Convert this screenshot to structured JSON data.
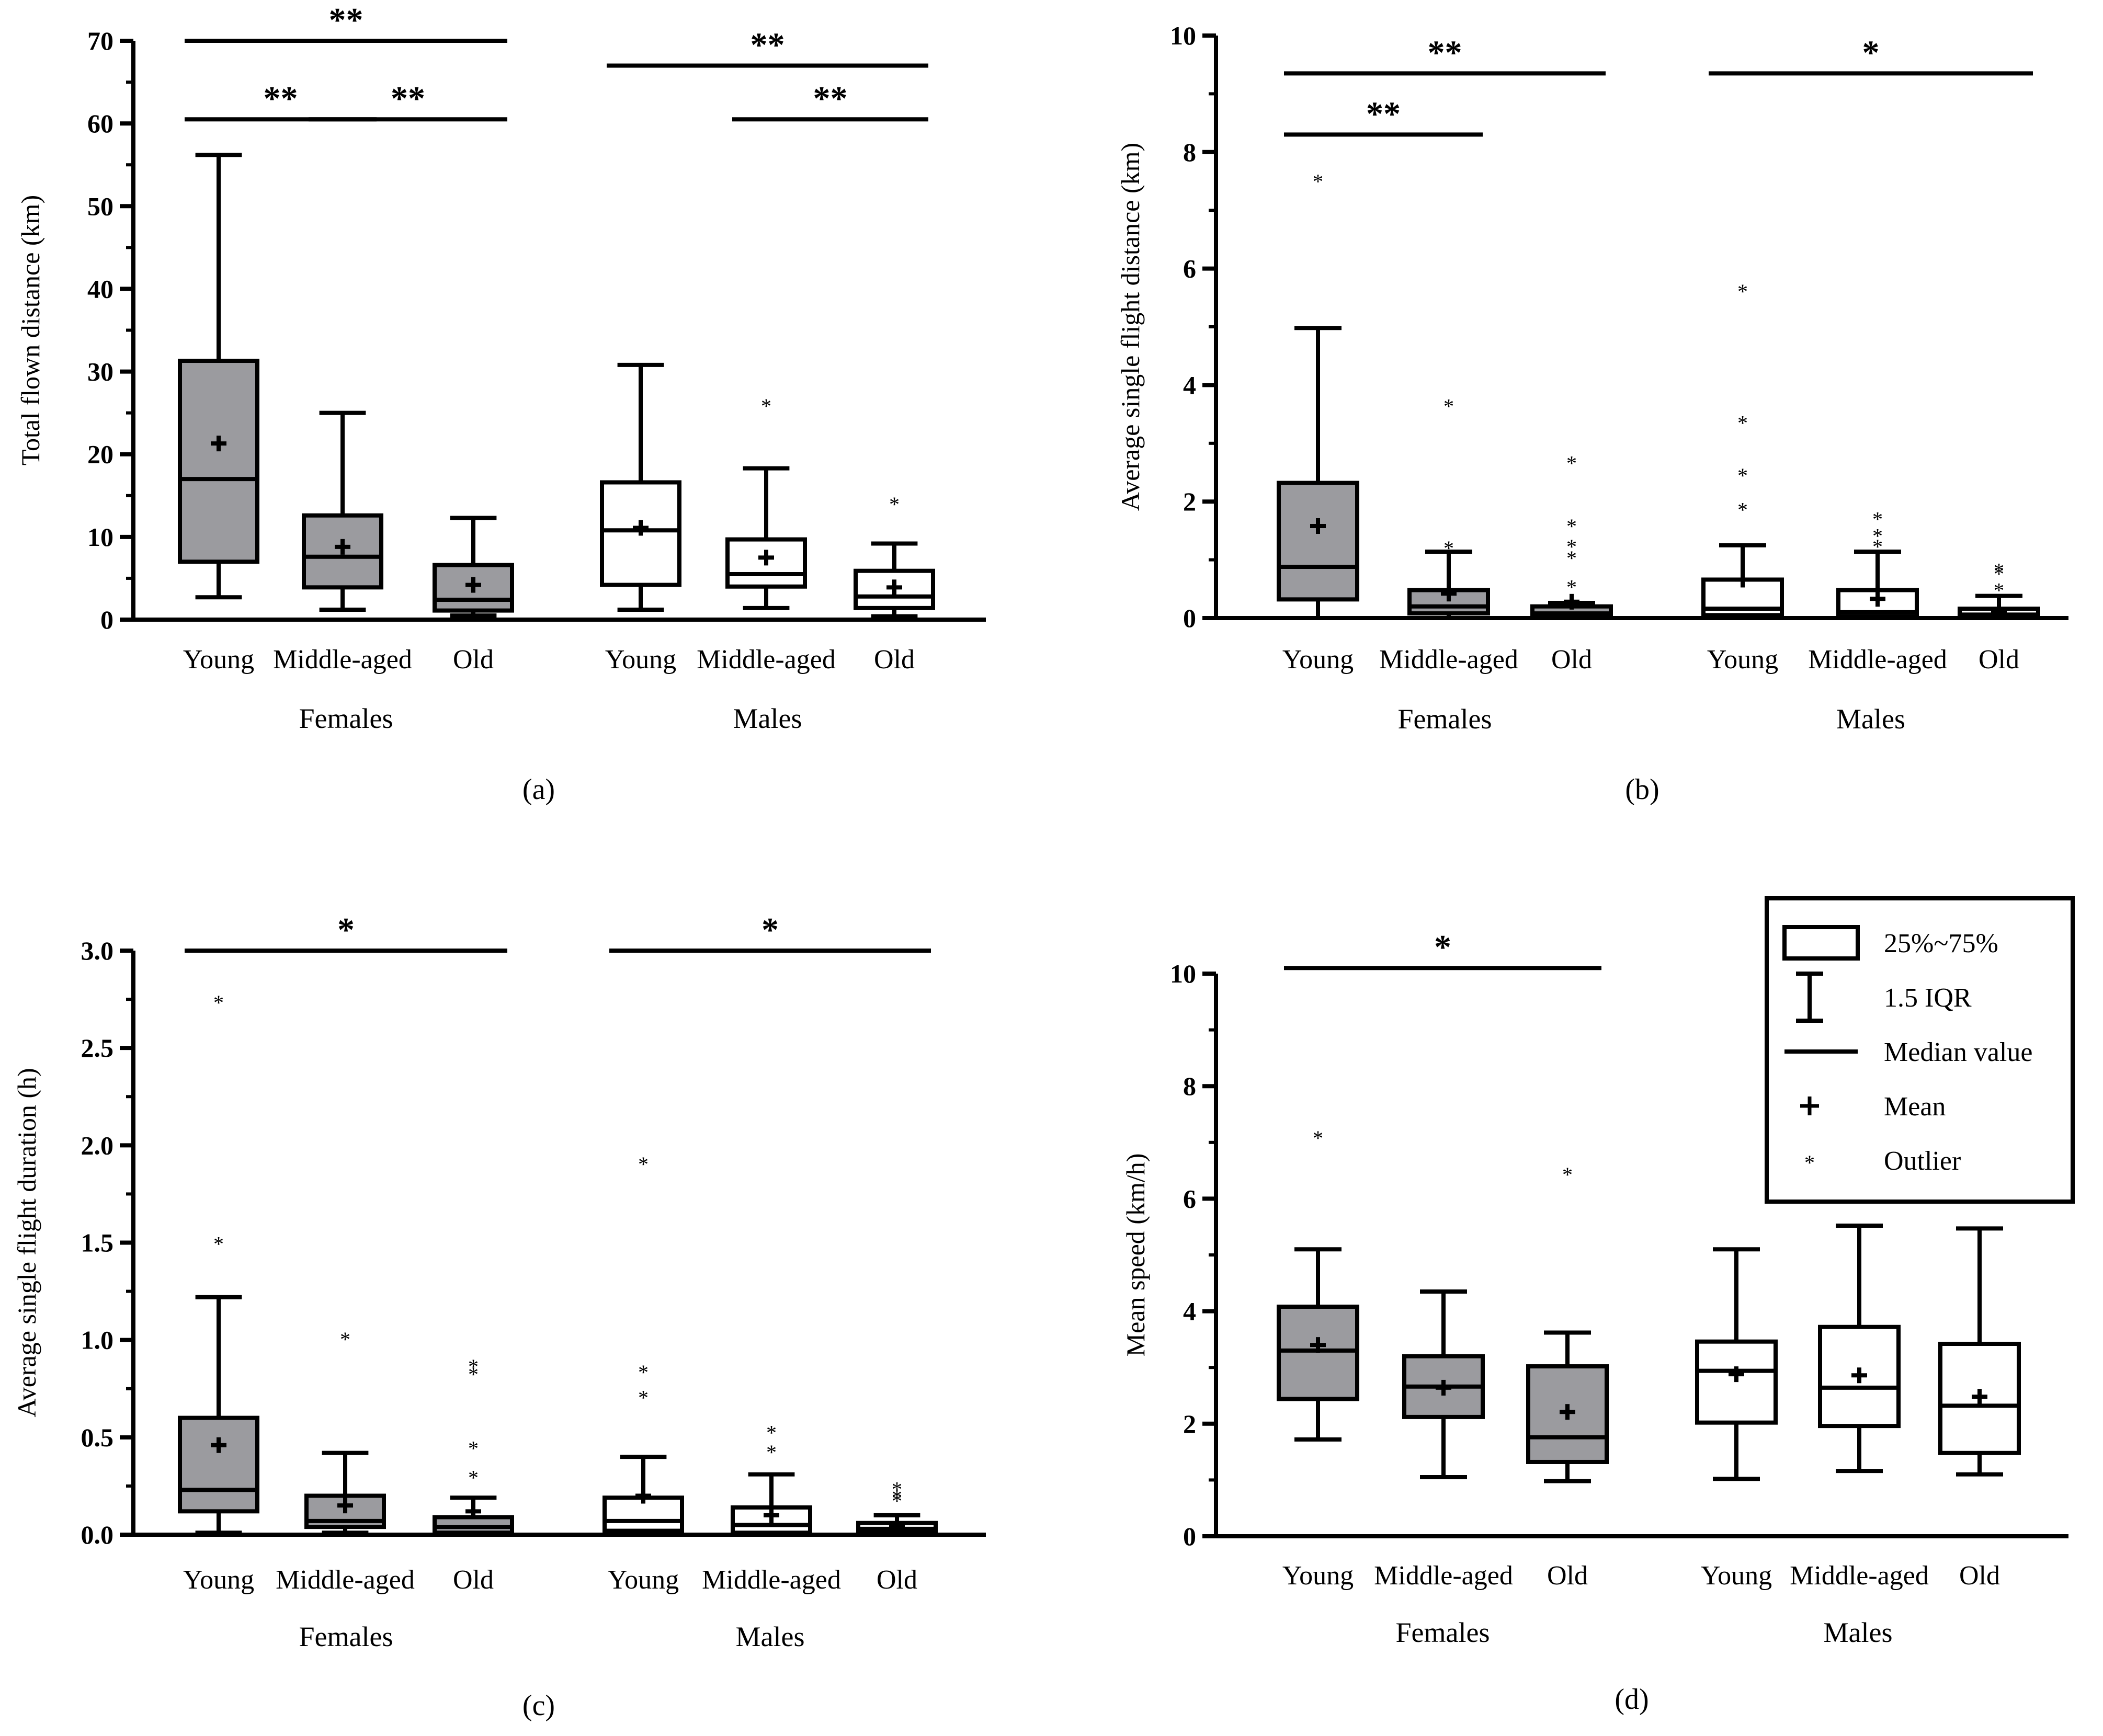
{
  "chart_data": [
    {
      "id": "a",
      "type": "boxplot",
      "panel_label": "(a)",
      "ylabel": "Total flown distance (km)",
      "ylim": [
        0,
        70
      ],
      "yticks": [
        0,
        10,
        20,
        30,
        40,
        50,
        60,
        70
      ],
      "ytick_labels": [
        "0",
        "10",
        "20",
        "30",
        "40",
        "50",
        "60",
        "70"
      ],
      "minor_ticks": true,
      "groups": [
        {
          "name": "Females",
          "fill": "#9b9b9f",
          "boxes": [
            {
              "category": "Young",
              "whisker_low": 2.7,
              "q1": 7.0,
              "median": 17.0,
              "q3": 31.3,
              "whisker_high": 56.2,
              "mean": 21.3,
              "outliers": []
            },
            {
              "category": "Middle-aged",
              "whisker_low": 1.2,
              "q1": 3.9,
              "median": 7.6,
              "q3": 12.6,
              "whisker_high": 25.0,
              "mean": 8.8,
              "outliers": []
            },
            {
              "category": "Old",
              "whisker_low": 0.5,
              "q1": 1.1,
              "median": 2.4,
              "q3": 6.6,
              "whisker_high": 12.3,
              "mean": 4.2,
              "outliers": []
            }
          ]
        },
        {
          "name": "Males",
          "fill": "#ffffff",
          "boxes": [
            {
              "category": "Young",
              "whisker_low": 1.2,
              "q1": 4.2,
              "median": 10.8,
              "q3": 16.6,
              "whisker_high": 30.8,
              "mean": 11.1,
              "outliers": []
            },
            {
              "category": "Middle-aged",
              "whisker_low": 1.4,
              "q1": 4.0,
              "median": 5.5,
              "q3": 9.7,
              "whisker_high": 18.3,
              "mean": 7.5,
              "outliers": [
                26.0
              ]
            },
            {
              "category": "Old",
              "whisker_low": 0.4,
              "q1": 1.4,
              "median": 2.8,
              "q3": 5.9,
              "whisker_high": 9.2,
              "mean": 3.9,
              "outliers": [
                14.1
              ]
            }
          ]
        }
      ],
      "significance": [
        {
          "from": 0,
          "to": 2,
          "label": "**",
          "level": 70
        },
        {
          "from": 0,
          "to": 1,
          "label": "**",
          "level": 60.5
        },
        {
          "from": 1,
          "to": 2,
          "label": "**",
          "level": 60.5
        },
        {
          "from": 3,
          "to": 5,
          "label": "**",
          "level": 67
        },
        {
          "from": 4,
          "to": 5,
          "label": "**",
          "level": 60.5
        }
      ]
    },
    {
      "id": "b",
      "type": "boxplot",
      "panel_label": "(b)",
      "ylabel": "Average single flight distance (km)",
      "ylim": [
        0,
        10
      ],
      "yticks": [
        0,
        2,
        4,
        6,
        8,
        10
      ],
      "ytick_labels": [
        "0",
        "2",
        "4",
        "6",
        "8",
        "10"
      ],
      "minor_ticks": true,
      "groups": [
        {
          "name": "Females",
          "fill": "#9b9b9f",
          "boxes": [
            {
              "category": "Young",
              "whisker_low": 0.0,
              "q1": 0.32,
              "median": 0.88,
              "q3": 2.32,
              "whisker_high": 4.98,
              "mean": 1.58,
              "outliers": [
                7.52
              ]
            },
            {
              "category": "Middle-aged",
              "whisker_low": 0.0,
              "q1": 0.08,
              "median": 0.2,
              "q3": 0.48,
              "whisker_high": 1.14,
              "mean": 0.42,
              "outliers": [
                1.22,
                3.66
              ]
            },
            {
              "category": "Old",
              "whisker_low": 0.0,
              "q1": 0.03,
              "median": 0.08,
              "q3": 0.2,
              "whisker_high": 0.26,
              "mean": 0.28,
              "outliers": [
                0.55,
                1.05,
                1.25,
                1.6,
                2.68
              ]
            }
          ]
        },
        {
          "name": "Males",
          "fill": "#ffffff",
          "boxes": [
            {
              "category": "Young",
              "whisker_low": 0.0,
              "q1": 0.05,
              "median": 0.16,
              "q3": 0.66,
              "whisker_high": 1.25,
              "mean": 0.66,
              "outliers": [
                1.88,
                2.47,
                3.37,
                5.63
              ]
            },
            {
              "category": "Middle-aged",
              "whisker_low": 0.0,
              "q1": 0.03,
              "median": 0.1,
              "q3": 0.48,
              "whisker_high": 1.14,
              "mean": 0.33,
              "outliers": [
                1.25,
                1.43,
                1.72
              ]
            },
            {
              "category": "Old",
              "whisker_low": 0.0,
              "q1": 0.02,
              "median": 0.06,
              "q3": 0.16,
              "whisker_high": 0.38,
              "mean": 0.1,
              "outliers": [
                0.5,
                0.78,
                0.84
              ]
            }
          ]
        }
      ],
      "significance": [
        {
          "from": 0,
          "to": 2,
          "label": "**",
          "level": 9.35
        },
        {
          "from": 0,
          "to": 1,
          "label": "**",
          "level": 8.3
        },
        {
          "from": 3,
          "to": 5,
          "label": "*",
          "level": 9.35
        }
      ]
    },
    {
      "id": "c",
      "type": "boxplot",
      "panel_label": "(c)",
      "ylabel": "Average single flight duration (h)",
      "ylim": [
        0,
        3.0
      ],
      "yticks": [
        0,
        0.5,
        1.0,
        1.5,
        2.0,
        2.5,
        3.0
      ],
      "ytick_labels": [
        "0.0",
        "0.5",
        "1.0",
        "1.5",
        "2.0",
        "2.5",
        "3.0"
      ],
      "minor_ticks": true,
      "groups": [
        {
          "name": "Females",
          "fill": "#9b9b9f",
          "boxes": [
            {
              "category": "Young",
              "whisker_low": 0.01,
              "q1": 0.12,
              "median": 0.23,
              "q3": 0.6,
              "whisker_high": 1.22,
              "mean": 0.46,
              "outliers": [
                1.5,
                2.74
              ]
            },
            {
              "category": "Middle-aged",
              "whisker_low": 0.01,
              "q1": 0.04,
              "median": 0.07,
              "q3": 0.2,
              "whisker_high": 0.42,
              "mean": 0.15,
              "outliers": [
                1.01
              ]
            },
            {
              "category": "Old",
              "whisker_low": 0.0,
              "q1": 0.01,
              "median": 0.04,
              "q3": 0.09,
              "whisker_high": 0.19,
              "mean": 0.12,
              "outliers": [
                0.3,
                0.45,
                0.83,
                0.87
              ]
            }
          ]
        },
        {
          "name": "Males",
          "fill": "#ffffff",
          "boxes": [
            {
              "category": "Young",
              "whisker_low": 0.0,
              "q1": 0.02,
              "median": 0.07,
              "q3": 0.19,
              "whisker_high": 0.4,
              "mean": 0.2,
              "outliers": [
                0.71,
                0.84,
                1.91
              ]
            },
            {
              "category": "Middle-aged",
              "whisker_low": 0.0,
              "q1": 0.01,
              "median": 0.05,
              "q3": 0.14,
              "whisker_high": 0.31,
              "mean": 0.1,
              "outliers": [
                0.43,
                0.53
              ]
            },
            {
              "category": "Old",
              "whisker_low": 0.0,
              "q1": 0.01,
              "median": 0.03,
              "q3": 0.06,
              "whisker_high": 0.1,
              "mean": 0.05,
              "outliers": [
                0.18,
                0.2,
                0.24
              ]
            }
          ]
        }
      ],
      "significance": [
        {
          "from": 0,
          "to": 2,
          "label": "*",
          "level": 3.0
        },
        {
          "from": 3,
          "to": 5,
          "label": "*",
          "level": 3.0
        }
      ]
    },
    {
      "id": "d",
      "type": "boxplot",
      "panel_label": "(d)",
      "ylabel": "Mean speed (km/h)",
      "ylim": [
        0,
        10
      ],
      "yticks": [
        0,
        2,
        4,
        6,
        8,
        10
      ],
      "ytick_labels": [
        "0",
        "2",
        "4",
        "6",
        "8",
        "10"
      ],
      "minor_ticks": true,
      "groups": [
        {
          "name": "Females",
          "fill": "#9b9b9f",
          "boxes": [
            {
              "category": "Young",
              "whisker_low": 1.72,
              "q1": 2.44,
              "median": 3.3,
              "q3": 4.08,
              "whisker_high": 5.1,
              "mean": 3.4,
              "outliers": [
                7.1
              ]
            },
            {
              "category": "Middle-aged",
              "whisker_low": 1.05,
              "q1": 2.12,
              "median": 2.66,
              "q3": 3.2,
              "whisker_high": 4.35,
              "mean": 2.64,
              "outliers": []
            },
            {
              "category": "Old",
              "whisker_low": 0.98,
              "q1": 1.32,
              "median": 1.76,
              "q3": 3.02,
              "whisker_high": 3.62,
              "mean": 2.21,
              "outliers": [
                6.45
              ]
            }
          ]
        },
        {
          "name": "Males",
          "fill": "#ffffff",
          "boxes": [
            {
              "category": "Young",
              "whisker_low": 1.02,
              "q1": 2.02,
              "median": 2.94,
              "q3": 3.46,
              "whisker_high": 5.1,
              "mean": 2.88,
              "outliers": []
            },
            {
              "category": "Middle-aged",
              "whisker_low": 1.16,
              "q1": 1.96,
              "median": 2.64,
              "q3": 3.72,
              "whisker_high": 5.52,
              "mean": 2.86,
              "outliers": []
            },
            {
              "category": "Old",
              "whisker_low": 1.1,
              "q1": 1.48,
              "median": 2.32,
              "q3": 3.42,
              "whisker_high": 5.47,
              "mean": 2.48,
              "outliers": []
            }
          ]
        }
      ],
      "significance": [
        {
          "from": 0,
          "to": 2,
          "label": "*",
          "level": 10.1
        }
      ],
      "legend": {
        "position": "top-right",
        "items": [
          {
            "symbol": "box",
            "label": "25%~75%"
          },
          {
            "symbol": "whisker",
            "label": "1.5 IQR"
          },
          {
            "symbol": "median",
            "label": "Median value"
          },
          {
            "symbol": "mean",
            "label": "Mean"
          },
          {
            "symbol": "outlier",
            "label": "Outlier"
          }
        ]
      }
    }
  ]
}
